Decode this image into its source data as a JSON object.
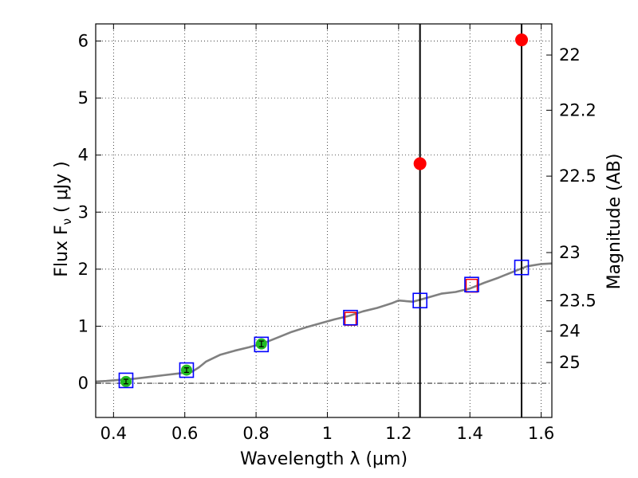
{
  "chart_data": {
    "type": "scatter",
    "xlabel": "Wavelength  λ (μm)",
    "ylabel": "Flux  F",
    "ylabel_sub": "ν",
    "ylabel_units": "  ( μJy )",
    "y2label": "Magnitude (AB)",
    "xlim": [
      0.35,
      1.63
    ],
    "ylim": [
      -0.6,
      6.3
    ],
    "grid": true,
    "x_ticks": [
      0.4,
      0.6,
      0.8,
      1.0,
      1.2,
      1.4,
      1.6
    ],
    "x_tick_labels": [
      "0.4",
      "0.6",
      "0.8",
      "1",
      "1.2",
      "1.4",
      "1.6"
    ],
    "y_ticks": [
      0,
      1,
      2,
      3,
      4,
      5,
      6
    ],
    "y_tick_labels": [
      "0",
      "1",
      "2",
      "3",
      "4",
      "5",
      "6"
    ],
    "magnitude_ticks": [
      22,
      22.2,
      22.5,
      23,
      23.5,
      24,
      25
    ],
    "magnitude_tick_labels": [
      "22",
      "22.2",
      "22.5",
      "23",
      "23.5",
      "24",
      "25"
    ],
    "model_spectrum": {
      "color": "#808080",
      "x": [
        0.35,
        0.38,
        0.42,
        0.46,
        0.5,
        0.54,
        0.58,
        0.62,
        0.64,
        0.66,
        0.7,
        0.74,
        0.78,
        0.82,
        0.86,
        0.9,
        0.94,
        0.98,
        1.02,
        1.06,
        1.1,
        1.14,
        1.18,
        1.2,
        1.24,
        1.28,
        1.32,
        1.36,
        1.4,
        1.44,
        1.48,
        1.52,
        1.56,
        1.6,
        1.63
      ],
      "y": [
        0.03,
        0.04,
        0.06,
        0.08,
        0.11,
        0.14,
        0.17,
        0.2,
        0.28,
        0.38,
        0.5,
        0.57,
        0.63,
        0.7,
        0.8,
        0.9,
        0.98,
        1.05,
        1.12,
        1.18,
        1.26,
        1.32,
        1.4,
        1.45,
        1.43,
        1.5,
        1.57,
        1.6,
        1.66,
        1.76,
        1.85,
        1.95,
        2.05,
        2.09,
        2.1
      ]
    },
    "model_photometry": {
      "marker": "open-square",
      "color": "#0000ff",
      "x": [
        0.435,
        0.605,
        0.815,
        1.065,
        1.26,
        1.405,
        1.545
      ],
      "y": [
        0.05,
        0.23,
        0.68,
        1.15,
        1.45,
        1.73,
        2.03
      ]
    },
    "red_boxes": {
      "marker": "open-square",
      "color": "#ff0000",
      "x": [
        1.065,
        1.405
      ],
      "y": [
        1.13,
        1.71
      ]
    },
    "detections": {
      "marker": "filled-circle",
      "color": "#22bb22",
      "x": [
        0.435,
        0.605,
        0.815
      ],
      "y": [
        0.03,
        0.23,
        0.69
      ],
      "err": [
        0.04,
        0.04,
        0.05
      ]
    },
    "upper_limits": {
      "marker": "filled-circle",
      "color": "#ff0000",
      "x": [
        1.26,
        1.545
      ],
      "y": [
        3.85,
        6.02
      ]
    },
    "vertical_lines": [
      1.26,
      1.545
    ],
    "zero_line": 0
  }
}
